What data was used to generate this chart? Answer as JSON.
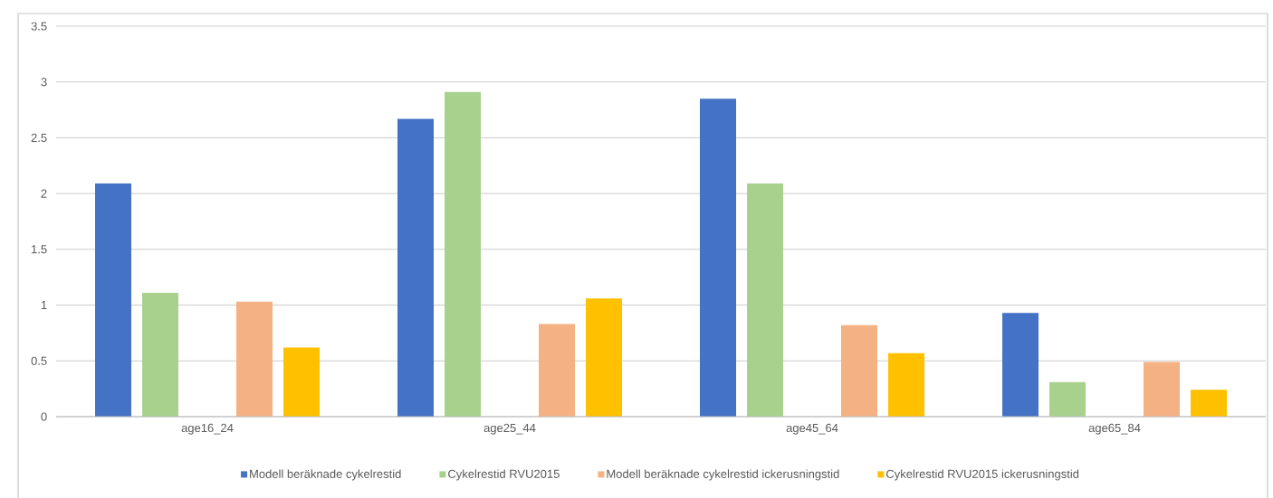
{
  "chart_data": {
    "type": "bar",
    "categories": [
      "age16_24",
      "age25_44",
      "age45_64",
      "age65_84"
    ],
    "series": [
      {
        "name": "Modell beräknade cykelrestid",
        "color": "#4472c4",
        "values": [
          2.09,
          2.67,
          2.85,
          0.93
        ]
      },
      {
        "name": "Cykelrestid RVU2015",
        "color": "#a9d18e",
        "values": [
          1.11,
          2.91,
          2.09,
          0.31
        ]
      },
      {
        "name": "Modell beräknade cykelrestid ickerusningstid",
        "color": "#f4b183",
        "values": [
          1.03,
          0.83,
          0.82,
          0.49
        ]
      },
      {
        "name": "Cykelrestid RVU2015 ickerusningstid",
        "color": "#ffc000",
        "values": [
          0.62,
          1.06,
          0.57,
          0.24
        ]
      }
    ],
    "ylim": [
      0,
      3.5
    ],
    "yticks": [
      0,
      0.5,
      1,
      1.5,
      2,
      2.5,
      3,
      3.5
    ],
    "grid": "y",
    "legend": "bottom"
  }
}
